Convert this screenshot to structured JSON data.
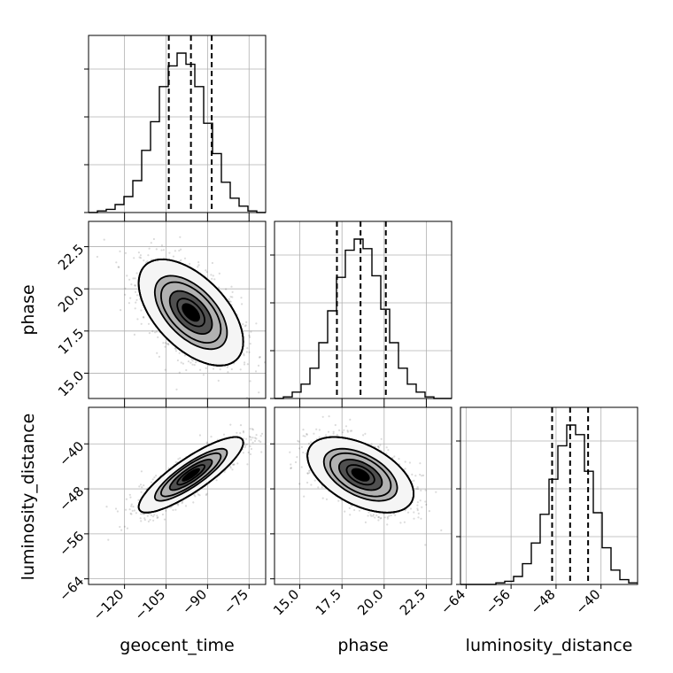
{
  "chart_data": {
    "type": "corner",
    "parameters": [
      "geocent_time",
      "phase",
      "luminosity_distance"
    ],
    "axis_labels": {
      "geocent_time": "geocent_time",
      "phase": "phase",
      "luminosity_distance": "luminosity_distance"
    },
    "ranges": {
      "geocent_time": [
        -133,
        -69
      ],
      "phase": [
        13.5,
        24.0
      ],
      "luminosity_distance": [
        -65.0,
        -33.5
      ]
    },
    "ticks": {
      "geocent_time": [
        -120,
        -105,
        -90,
        -75
      ],
      "phase": [
        15.0,
        17.5,
        20.0,
        22.5
      ],
      "luminosity_distance": [
        -64,
        -56,
        -48,
        -40
      ]
    },
    "tick_labels": {
      "geocent_time": [
        "−120",
        "−105",
        "−90",
        "−75"
      ],
      "phase": [
        "15.0",
        "17.5",
        "20.0",
        "22.5"
      ],
      "luminosity_distance": [
        "−64",
        "−56",
        "−48",
        "−40"
      ]
    },
    "quantiles": {
      "geocent_time": [
        -104.0,
        -96.0,
        -88.5
      ],
      "phase": [
        17.2,
        18.6,
        20.1
      ],
      "luminosity_distance": [
        -48.7,
        -45.5,
        -42.3
      ]
    },
    "histograms": {
      "geocent_time": {
        "edges": [
          -133,
          -129.8,
          -126.6,
          -123.4,
          -120.2,
          -117,
          -113.8,
          -110.6,
          -107.4,
          -104.2,
          -101,
          -97.8,
          -94.6,
          -91.4,
          -88.2,
          -85,
          -81.8,
          -78.6,
          -75.4,
          -72.2,
          -69
        ],
        "counts": [
          0,
          1,
          2,
          5,
          10,
          20,
          39,
          57,
          79,
          92,
          100,
          93,
          79,
          56,
          37,
          19,
          9,
          4,
          1,
          0
        ]
      },
      "phase": {
        "edges": [
          13.5,
          14.025,
          14.55,
          15.075,
          15.6,
          16.125,
          16.65,
          17.175,
          17.7,
          18.225,
          18.75,
          19.275,
          19.8,
          20.325,
          20.85,
          21.375,
          21.9,
          22.425,
          22.95,
          23.475,
          24.0
        ],
        "counts": [
          0,
          1,
          4,
          9,
          19,
          35,
          55,
          76,
          93,
          100,
          94,
          77,
          56,
          35,
          19,
          9,
          4,
          1,
          0,
          0
        ]
      },
      "luminosity_distance": {
        "edges": [
          -65.0,
          -63.425,
          -61.85,
          -60.275,
          -58.7,
          -57.125,
          -55.55,
          -53.975,
          -52.4,
          -50.825,
          -49.25,
          -47.675,
          -46.1,
          -44.525,
          -42.95,
          -41.375,
          -39.8,
          -38.225,
          -36.65,
          -35.075,
          -33.5
        ],
        "counts": [
          0,
          0,
          0,
          0,
          1,
          2,
          5,
          13,
          26,
          44,
          66,
          87,
          100,
          94,
          71,
          45,
          23,
          9,
          3,
          1
        ]
      }
    },
    "grid": true
  }
}
